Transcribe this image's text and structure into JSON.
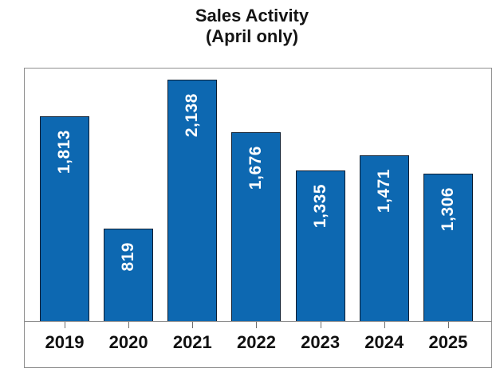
{
  "title": "Sales Activity",
  "subtitle": "(April only)",
  "colors": {
    "bar_fill": "#0D68B1",
    "bar_border": "#0A1C30",
    "box_border": "#8E8E8E",
    "axis_line": "#8C8C8C",
    "tick": "#6E6E6E",
    "bar_label_text": "#FFFFFF",
    "axis_label_text": "#111111",
    "title_text": "#141414"
  },
  "chart_data": {
    "type": "bar",
    "title": "Sales Activity",
    "subtitle": "(April only)",
    "categories": [
      "2019",
      "2020",
      "2021",
      "2022",
      "2023",
      "2024",
      "2025"
    ],
    "values": [
      1813,
      819,
      2138,
      1676,
      1335,
      1471,
      1306
    ],
    "value_labels": [
      "1,813",
      "819",
      "2,138",
      "1,676",
      "1,335",
      "1,471",
      "1,306"
    ],
    "xlabel": "",
    "ylabel": "",
    "ylim": [
      0,
      2240
    ],
    "grid": false,
    "legend": false,
    "bar_label_position": "inside-top-rotated-90ccw"
  }
}
